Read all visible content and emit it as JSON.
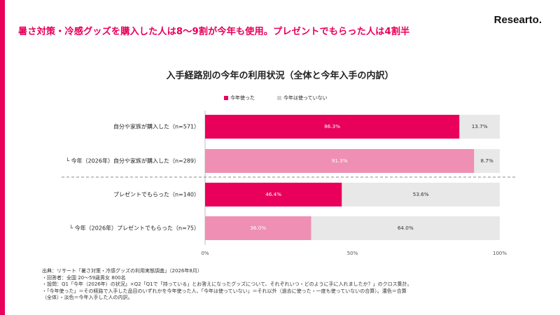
{
  "headline": "暑さ対策・冷感グッズを購入した人は8～9割が今年も使用。プレゼントでもらった人は4割半",
  "logo": "Researto.",
  "colors": {
    "accent": "#e8005a",
    "light_pink": "#ef8fb3",
    "grey": "#e8e8e8"
  },
  "chart_data": {
    "type": "bar",
    "orientation": "horizontal-stacked-100",
    "title": "入手経路別の今年の利用状況（全体と今年入手の内訳）",
    "legend": {
      "position": "top-center",
      "entries": [
        "今年使った",
        "今年は使っていない"
      ]
    },
    "xlim": [
      0,
      100
    ],
    "xticks": [
      "0%",
      "50%",
      "100%"
    ],
    "grid": false,
    "categories": [
      "自分や家族が購入した（n=571）",
      "└ 今年（2026年）自分や家族が購入した（n=289）",
      "プレゼントでもらった（n=140）",
      "└ 今年（2026年）プレゼントでもらった（n=75）"
    ],
    "series": [
      {
        "name": "今年使った",
        "values": [
          86.3,
          91.3,
          46.4,
          36.0
        ],
        "labels": [
          "86.3%",
          "91.3%",
          "46.4%",
          "36.0%"
        ],
        "colors": [
          "#e8005a",
          "#ef8fb3",
          "#e8005a",
          "#ef8fb3"
        ]
      },
      {
        "name": "今年は使っていない",
        "values": [
          13.7,
          8.7,
          53.6,
          64.0
        ],
        "labels": [
          "13.7%",
          "8.7%",
          "53.6%",
          "64.0%"
        ],
        "colors": [
          "#e8e8e8",
          "#e8e8e8",
          "#e8e8e8",
          "#e8e8e8"
        ]
      }
    ],
    "separator": "dashed line between row 2 and row 3"
  },
  "source_notes": [
    "出典：リサート「暑さ対策・冷感グッズの利用実態調査」（2026年8月）",
    "・回答者：全国 20～59歳男女 800名",
    "・設問：Q1「今年（2026年）の状況」×Q2「Q1で「持っている」とお答えになったグッズについて、それぞれいつ・どのように手に入れましたか？」のクロス集計。",
    "・「今年使った」＝その経路で入手した品目のいずれかを今年使った人、「今年は使っていない」＝それ以外（過去に使った・一度も使っていないの合算）。濃色＝合算",
    "（全体）・淡色＝今年入手した人の内訳。"
  ]
}
